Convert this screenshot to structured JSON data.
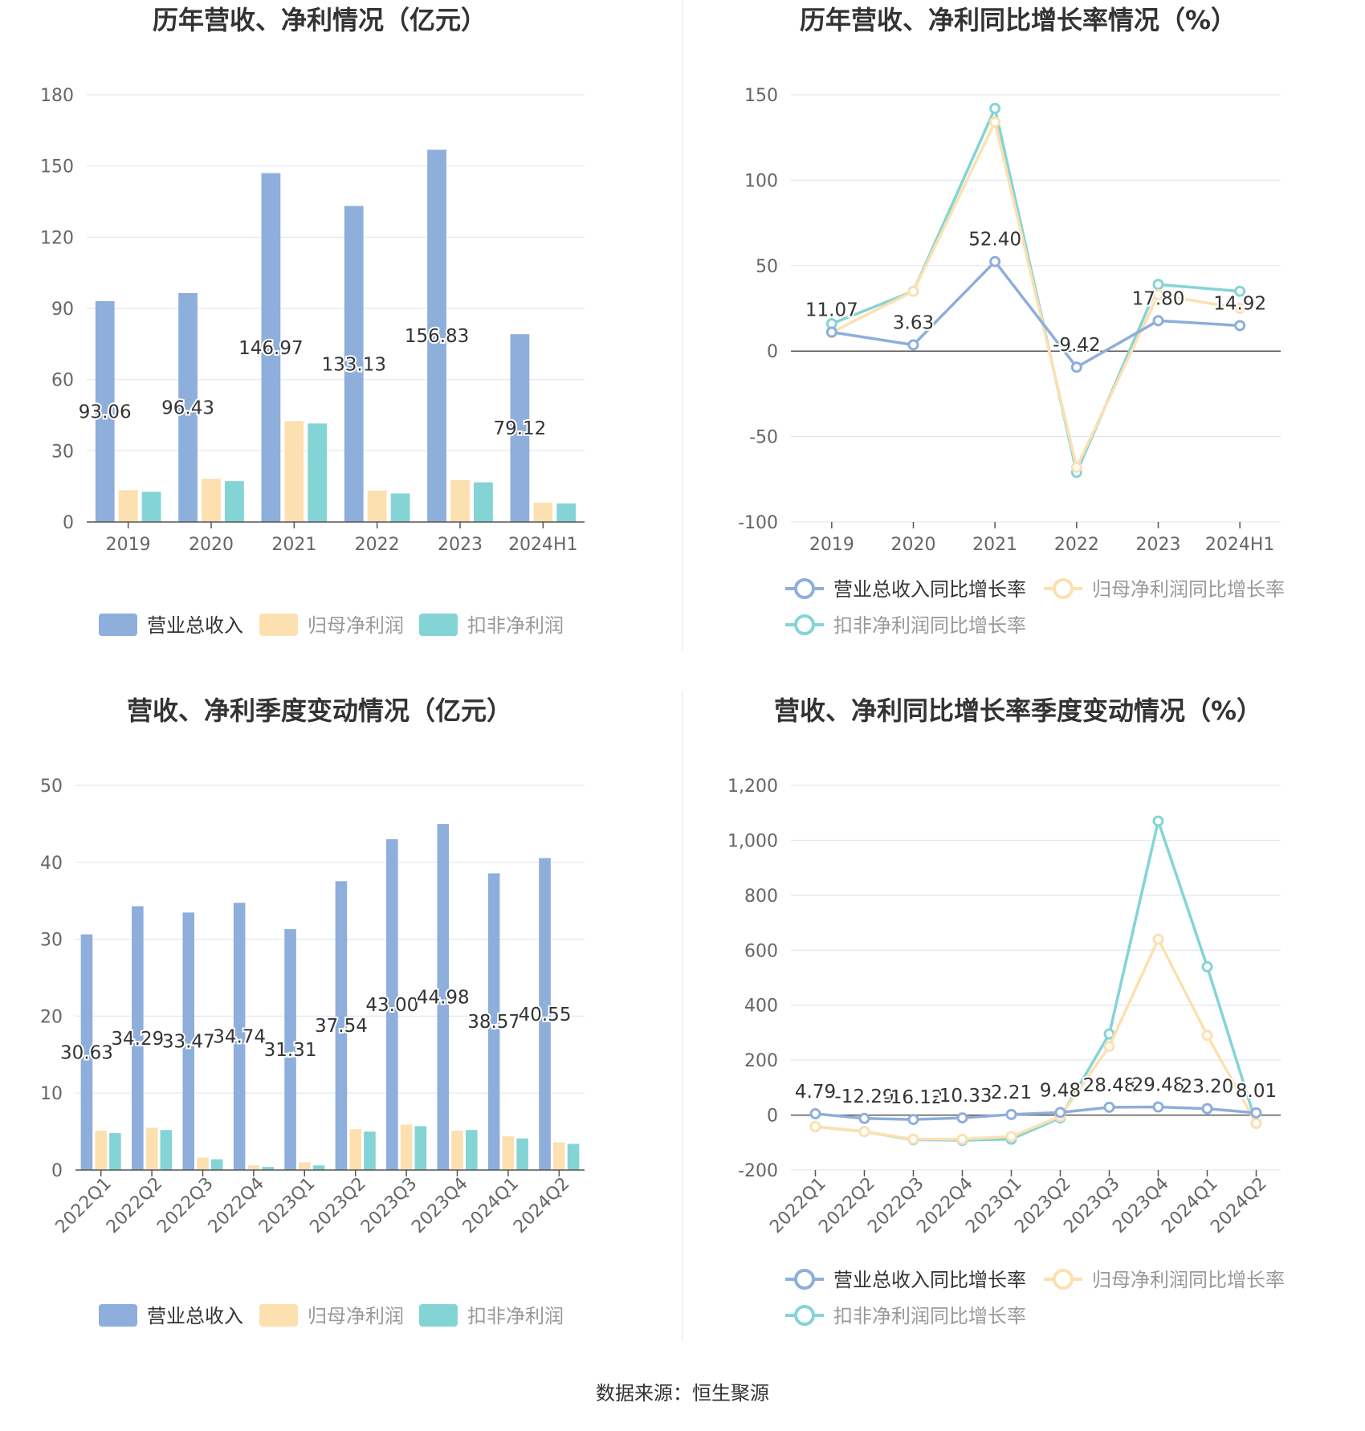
{
  "colors": {
    "revenue": "#8eaedb",
    "profit": "#fde0b0",
    "deducted": "#84d4d6",
    "grid": "#e3e6ef",
    "axis": "#555555",
    "text": "#333333",
    "tick": "#666666"
  },
  "source": "数据来源：恒生聚源",
  "chart_data": [
    {
      "type": "bar",
      "title": "历年营收、净利情况（亿元）",
      "categories": [
        "2019",
        "2020",
        "2021",
        "2022",
        "2023",
        "2024H1"
      ],
      "ylim": [
        0,
        180
      ],
      "yticks": [
        0,
        30,
        60,
        90,
        120,
        150,
        180
      ],
      "series": [
        {
          "name": "营业总收入",
          "values": [
            93.06,
            96.43,
            146.97,
            133.13,
            156.83,
            79.12
          ],
          "labels": [
            "93.06",
            "96.43",
            "146.97",
            "133.13",
            "156.83",
            "79.12"
          ]
        },
        {
          "name": "归母净利润",
          "values": [
            13.4,
            18.2,
            42.5,
            13.2,
            17.6,
            8.1
          ]
        },
        {
          "name": "扣非净利润",
          "values": [
            12.7,
            17.2,
            41.5,
            12.0,
            16.7,
            7.8
          ]
        }
      ],
      "legend": "bottom"
    },
    {
      "type": "line",
      "title": "历年营收、净利同比增长率情况（%）",
      "categories": [
        "2019",
        "2020",
        "2021",
        "2022",
        "2023",
        "2024H1"
      ],
      "ylim": [
        -100,
        150
      ],
      "yticks": [
        -100,
        -50,
        0,
        50,
        100,
        150
      ],
      "series": [
        {
          "name": "营业总收入同比增长率",
          "values": [
            11.07,
            3.63,
            52.4,
            -9.42,
            17.8,
            14.92
          ],
          "labels": [
            "11.07",
            "3.63",
            "52.40",
            "-9.42",
            "17.80",
            "14.92"
          ]
        },
        {
          "name": "归母净利润同比增长率",
          "values": [
            11,
            35,
            134,
            -68,
            33,
            25
          ]
        },
        {
          "name": "扣非净利润同比增长率",
          "values": [
            16,
            35,
            142,
            -71,
            39,
            35
          ]
        }
      ],
      "legend": "bottom"
    },
    {
      "type": "bar",
      "title": "营收、净利季度变动情况（亿元）",
      "categories": [
        "2022Q1",
        "2022Q2",
        "2022Q3",
        "2022Q4",
        "2023Q1",
        "2023Q2",
        "2023Q3",
        "2023Q4",
        "2024Q1",
        "2024Q2"
      ],
      "ylim": [
        0,
        50
      ],
      "yticks": [
        0,
        10,
        20,
        30,
        40,
        50
      ],
      "series": [
        {
          "name": "营业总收入",
          "values": [
            30.63,
            34.29,
            33.47,
            34.74,
            31.31,
            37.54,
            43.0,
            44.98,
            38.57,
            40.55
          ],
          "labels": [
            "30.63",
            "34.29",
            "33.47",
            "34.74",
            "31.31",
            "37.54",
            "43.00",
            "44.98",
            "38.57",
            "40.55"
          ]
        },
        {
          "name": "归母净利润",
          "values": [
            5.1,
            5.5,
            1.6,
            0.6,
            1.0,
            5.3,
            5.9,
            5.1,
            4.4,
            3.6
          ]
        },
        {
          "name": "扣非净利润",
          "values": [
            4.8,
            5.2,
            1.4,
            0.4,
            0.6,
            5.0,
            5.7,
            5.2,
            4.1,
            3.4
          ]
        }
      ],
      "legend": "bottom"
    },
    {
      "type": "line",
      "title": "营收、净利同比增长率季度变动情况（%）",
      "categories": [
        "2022Q1",
        "2022Q2",
        "2022Q3",
        "2022Q4",
        "2023Q1",
        "2023Q2",
        "2023Q3",
        "2023Q4",
        "2024Q1",
        "2024Q2"
      ],
      "ylim": [
        -200,
        1200
      ],
      "yticks": [
        -200,
        0,
        200,
        400,
        600,
        800,
        1000,
        1200
      ],
      "ytick_labels": [
        "-200",
        "0",
        "200",
        "400",
        "600",
        "800",
        "1,000",
        "1,200"
      ],
      "series": [
        {
          "name": "营业总收入同比增长率",
          "values": [
            4.79,
            -12.29,
            -16.12,
            -10.33,
            2.21,
            9.48,
            28.48,
            29.48,
            23.2,
            8.01
          ],
          "labels": [
            "4.79",
            "-12.29",
            "-16.12",
            "-10.33",
            "2.21",
            "9.48",
            "28.48",
            "29.48",
            "23.20",
            "8.01"
          ]
        },
        {
          "name": "归母净利润同比增长率",
          "values": [
            -42,
            -60,
            -88,
            -88,
            -78,
            -5,
            250,
            640,
            290,
            -30
          ]
        },
        {
          "name": "扣非净利润同比增长率",
          "values": [
            -42,
            -60,
            -90,
            -92,
            -88,
            -10,
            295,
            1070,
            540,
            -30
          ]
        }
      ],
      "legend": "bottom"
    }
  ]
}
